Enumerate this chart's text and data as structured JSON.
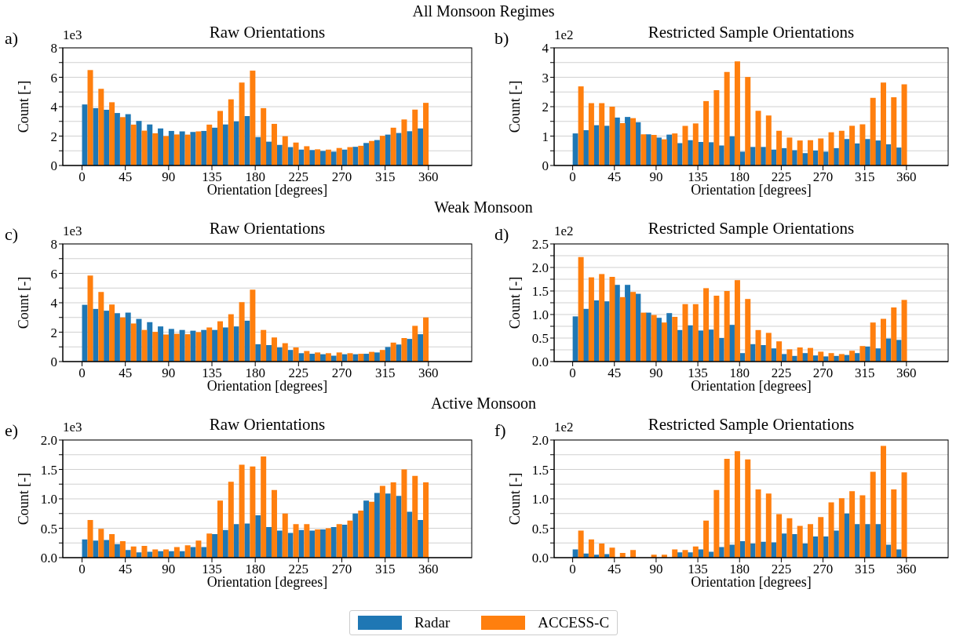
{
  "chart_data": [
    {
      "type": "bar",
      "title": "Raw Orientations",
      "xlabel": "Orientation [degrees]",
      "ylabel": "Count [-]",
      "annotations": [
        "a)",
        "1e3",
        "All Monsoon Regimes"
      ],
      "x": [
        5.625,
        16.875,
        28.125,
        39.375,
        50.625,
        61.875,
        73.125,
        84.375,
        95.625,
        106.875,
        118.125,
        129.375,
        140.625,
        151.875,
        163.125,
        174.375,
        185.625,
        196.875,
        208.125,
        219.375,
        230.625,
        241.875,
        253.125,
        264.375,
        275.625,
        286.875,
        298.125,
        309.375,
        320.625,
        331.875,
        343.125,
        354.375
      ],
      "series": [
        {
          "color": "#1f77b4",
          "values": [
            4.15,
            3.9,
            3.79,
            3.57,
            3.49,
            3.03,
            2.79,
            2.52,
            2.35,
            2.32,
            2.28,
            2.35,
            2.57,
            2.79,
            3.0,
            3.36,
            1.93,
            1.62,
            1.4,
            1.25,
            1.08,
            1.05,
            0.99,
            0.94,
            1.08,
            1.27,
            1.53,
            1.73,
            2.1,
            2.21,
            2.33,
            2.52
          ]
        },
        {
          "color": "#ff7f0e",
          "values": [
            6.49,
            5.22,
            4.3,
            3.29,
            2.78,
            2.37,
            2.19,
            2.0,
            2.11,
            2.1,
            2.32,
            2.78,
            3.71,
            4.5,
            5.64,
            6.45,
            3.9,
            2.83,
            1.99,
            1.56,
            1.31,
            1.1,
            1.08,
            1.19,
            1.25,
            1.34,
            1.67,
            2.02,
            2.57,
            3.13,
            3.8,
            4.26
          ]
        }
      ],
      "xlim": [
        -20,
        405
      ],
      "xticks": [
        0,
        45,
        90,
        135,
        180,
        225,
        270,
        315,
        360
      ],
      "ylim": [
        0,
        8
      ],
      "yticks": [
        0,
        {
          "value": 1,
          "label": null
        },
        2,
        {
          "value": 3,
          "label": null
        },
        4,
        {
          "value": 5,
          "label": null
        },
        6,
        {
          "value": 7,
          "label": null
        },
        8
      ],
      "grid": "y"
    },
    {
      "type": "bar",
      "title": "Restricted Sample Orientations",
      "xlabel": "Orientation [degrees]",
      "ylabel": "Count [-]",
      "annotations": [
        "b)",
        "1e2"
      ],
      "x": [
        5.625,
        16.875,
        28.125,
        39.375,
        50.625,
        61.875,
        73.125,
        84.375,
        95.625,
        106.875,
        118.125,
        129.375,
        140.625,
        151.875,
        163.125,
        174.375,
        185.625,
        196.875,
        208.125,
        219.375,
        230.625,
        241.875,
        253.125,
        264.375,
        275.625,
        286.875,
        298.125,
        309.375,
        320.625,
        331.875,
        343.125,
        354.375
      ],
      "series": [
        {
          "color": "#1f77b4",
          "values": [
            1.09,
            1.2,
            1.37,
            1.35,
            1.63,
            1.65,
            1.47,
            1.06,
            0.95,
            1.05,
            0.76,
            0.86,
            0.8,
            0.79,
            0.68,
            0.99,
            0.47,
            0.63,
            0.63,
            0.54,
            0.59,
            0.52,
            0.42,
            0.51,
            0.47,
            0.59,
            0.9,
            0.75,
            0.9,
            0.85,
            0.72,
            0.61
          ]
        },
        {
          "color": "#ff7f0e",
          "values": [
            2.69,
            2.12,
            2.12,
            2.0,
            1.44,
            1.61,
            1.06,
            1.04,
            0.89,
            1.09,
            1.35,
            1.43,
            2.19,
            2.56,
            3.18,
            3.54,
            3.01,
            1.86,
            1.7,
            1.18,
            0.95,
            0.85,
            0.86,
            0.92,
            1.13,
            1.18,
            1.35,
            1.4,
            2.3,
            2.82,
            2.32,
            2.76
          ]
        }
      ],
      "xlim": [
        -20,
        405
      ],
      "xticks": [
        0,
        45,
        90,
        135,
        180,
        225,
        270,
        315,
        360
      ],
      "ylim": [
        0,
        4
      ],
      "yticks": [
        0,
        {
          "value": 0.5,
          "label": null
        },
        1,
        {
          "value": 1.5,
          "label": null
        },
        2,
        {
          "value": 2.5,
          "label": null
        },
        3,
        {
          "value": 3.5,
          "label": null
        },
        4
      ],
      "grid": "y"
    },
    {
      "type": "bar",
      "title": "Raw Orientations",
      "xlabel": "Orientation [degrees]",
      "ylabel": "Count [-]",
      "annotations": [
        "c)",
        "1e3",
        "Weak Monsoon"
      ],
      "x": [
        5.625,
        16.875,
        28.125,
        39.375,
        50.625,
        61.875,
        73.125,
        84.375,
        95.625,
        106.875,
        118.125,
        129.375,
        140.625,
        151.875,
        163.125,
        174.375,
        185.625,
        196.875,
        208.125,
        219.375,
        230.625,
        241.875,
        253.125,
        264.375,
        275.625,
        286.875,
        298.125,
        309.375,
        320.625,
        331.875,
        343.125,
        354.375
      ],
      "series": [
        {
          "color": "#1f77b4",
          "values": [
            3.86,
            3.58,
            3.46,
            3.29,
            3.33,
            2.9,
            2.68,
            2.39,
            2.22,
            2.15,
            2.1,
            2.15,
            2.15,
            2.32,
            2.39,
            2.78,
            1.18,
            1.12,
            0.96,
            0.79,
            0.57,
            0.53,
            0.5,
            0.4,
            0.5,
            0.5,
            0.53,
            0.62,
            0.99,
            1.16,
            1.54,
            1.86
          ]
        },
        {
          "color": "#ff7f0e",
          "values": [
            5.85,
            4.74,
            3.88,
            3.0,
            2.59,
            2.15,
            2.02,
            1.84,
            1.89,
            1.86,
            2.0,
            2.32,
            2.74,
            3.22,
            4.04,
            4.89,
            2.15,
            1.64,
            1.25,
            0.96,
            0.72,
            0.62,
            0.57,
            0.62,
            0.57,
            0.53,
            0.66,
            0.79,
            1.29,
            1.6,
            2.43,
            3.0
          ]
        }
      ],
      "xlim": [
        -20,
        405
      ],
      "xticks": [
        0,
        45,
        90,
        135,
        180,
        225,
        270,
        315,
        360
      ],
      "ylim": [
        0,
        8
      ],
      "yticks": [
        0,
        {
          "value": 1,
          "label": null
        },
        2,
        {
          "value": 3,
          "label": null
        },
        4,
        {
          "value": 5,
          "label": null
        },
        6,
        {
          "value": 7,
          "label": null
        },
        8
      ],
      "grid": "y"
    },
    {
      "type": "bar",
      "title": "Restricted Sample Orientations",
      "xlabel": "Orientation [degrees]",
      "ylabel": "Count [-]",
      "annotations": [
        "d)",
        "1e2"
      ],
      "x": [
        5.625,
        16.875,
        28.125,
        39.375,
        50.625,
        61.875,
        73.125,
        84.375,
        95.625,
        106.875,
        118.125,
        129.375,
        140.625,
        151.875,
        163.125,
        174.375,
        185.625,
        196.875,
        208.125,
        219.375,
        230.625,
        241.875,
        253.125,
        264.375,
        275.625,
        286.875,
        298.125,
        309.375,
        320.625,
        331.875,
        343.125,
        354.375
      ],
      "series": [
        {
          "color": "#1f77b4",
          "values": [
            0.96,
            1.12,
            1.3,
            1.28,
            1.63,
            1.63,
            1.44,
            1.04,
            0.93,
            1.03,
            0.67,
            0.77,
            0.66,
            0.68,
            0.5,
            0.78,
            0.18,
            0.37,
            0.35,
            0.28,
            0.16,
            0.12,
            0.18,
            0.13,
            0.11,
            0.12,
            0.14,
            0.18,
            0.32,
            0.28,
            0.49,
            0.46
          ]
        },
        {
          "color": "#ff7f0e",
          "values": [
            2.22,
            1.79,
            1.86,
            1.8,
            1.37,
            1.48,
            1.04,
            0.99,
            0.83,
            0.95,
            1.22,
            1.22,
            1.56,
            1.4,
            1.5,
            1.73,
            1.33,
            0.67,
            0.61,
            0.43,
            0.26,
            0.3,
            0.29,
            0.21,
            0.18,
            0.16,
            0.23,
            0.33,
            0.83,
            0.91,
            1.15,
            1.31
          ]
        }
      ],
      "xlim": [
        -20,
        405
      ],
      "xticks": [
        0,
        45,
        90,
        135,
        180,
        225,
        270,
        315,
        360
      ],
      "ylim": [
        0,
        2.5
      ],
      "yticks": [
        {
          "value": 0,
          "label": "0.0"
        },
        {
          "value": 0.25,
          "label": null
        },
        {
          "value": 0.5,
          "label": "0.5"
        },
        {
          "value": 0.75,
          "label": null
        },
        {
          "value": 1,
          "label": "1.0"
        },
        {
          "value": 1.25,
          "label": null
        },
        {
          "value": 1.5,
          "label": "1.5"
        },
        {
          "value": 1.75,
          "label": null
        },
        {
          "value": 2,
          "label": "2.0"
        },
        {
          "value": 2.25,
          "label": null
        },
        {
          "value": 2.5,
          "label": "2.5"
        }
      ],
      "grid": "y"
    },
    {
      "type": "bar",
      "title": "Raw Orientations",
      "xlabel": "Orientation [degrees]",
      "ylabel": "Count [-]",
      "annotations": [
        "e)",
        "1e3",
        "Active Monsoon"
      ],
      "x": [
        5.625,
        16.875,
        28.125,
        39.375,
        50.625,
        61.875,
        73.125,
        84.375,
        95.625,
        106.875,
        118.125,
        129.375,
        140.625,
        151.875,
        163.125,
        174.375,
        185.625,
        196.875,
        208.125,
        219.375,
        230.625,
        241.875,
        253.125,
        264.375,
        275.625,
        286.875,
        298.125,
        309.375,
        320.625,
        331.875,
        343.125,
        354.375
      ],
      "series": [
        {
          "color": "#1f77b4",
          "values": [
            0.31,
            0.29,
            0.3,
            0.23,
            0.13,
            0.09,
            0.1,
            0.11,
            0.11,
            0.11,
            0.18,
            0.18,
            0.4,
            0.47,
            0.57,
            0.58,
            0.72,
            0.52,
            0.46,
            0.42,
            0.47,
            0.46,
            0.48,
            0.52,
            0.56,
            0.75,
            0.97,
            1.1,
            1.09,
            1.05,
            0.78,
            0.64
          ]
        },
        {
          "color": "#ff7f0e",
          "values": [
            0.64,
            0.49,
            0.4,
            0.28,
            0.19,
            0.2,
            0.14,
            0.14,
            0.18,
            0.21,
            0.29,
            0.41,
            0.97,
            1.29,
            1.58,
            1.55,
            1.72,
            1.15,
            0.75,
            0.57,
            0.57,
            0.48,
            0.5,
            0.57,
            0.63,
            0.8,
            0.95,
            1.22,
            1.28,
            1.5,
            1.39,
            1.28
          ]
        }
      ],
      "xlim": [
        -20,
        405
      ],
      "xticks": [
        0,
        45,
        90,
        135,
        180,
        225,
        270,
        315,
        360
      ],
      "ylim": [
        0,
        2
      ],
      "yticks": [
        {
          "value": 0,
          "label": "0.0"
        },
        {
          "value": 0.25,
          "label": null
        },
        {
          "value": 0.5,
          "label": "0.5"
        },
        {
          "value": 0.75,
          "label": null
        },
        {
          "value": 1,
          "label": "1.0"
        },
        {
          "value": 1.25,
          "label": null
        },
        {
          "value": 1.5,
          "label": "1.5"
        },
        {
          "value": 1.75,
          "label": null
        },
        {
          "value": 2,
          "label": "2.0"
        }
      ],
      "grid": "y"
    },
    {
      "type": "bar",
      "title": "Restricted Sample Orientations",
      "xlabel": "Orientation [degrees]",
      "ylabel": "Count [-]",
      "annotations": [
        "f)",
        "1e2"
      ],
      "x": [
        5.625,
        16.875,
        28.125,
        39.375,
        50.625,
        61.875,
        73.125,
        84.375,
        95.625,
        106.875,
        118.125,
        129.375,
        140.625,
        151.875,
        163.125,
        174.375,
        185.625,
        196.875,
        208.125,
        219.375,
        230.625,
        241.875,
        253.125,
        264.375,
        275.625,
        286.875,
        298.125,
        309.375,
        320.625,
        331.875,
        343.125,
        354.375
      ],
      "series": [
        {
          "name": "Radar",
          "color": "#1f77b4",
          "values": [
            0.14,
            0.07,
            0.05,
            0.06,
            0,
            0,
            null,
            0,
            0,
            0,
            0.09,
            0.09,
            0.14,
            0.1,
            0.18,
            0.22,
            0.28,
            0.24,
            0.27,
            0.26,
            0.41,
            0.4,
            0.24,
            0.36,
            0.36,
            0.46,
            0.75,
            0.57,
            0.57,
            0.57,
            0.22,
            0.14
          ]
        },
        {
          "name": "ACCESS-C",
          "color": "#ff7f0e",
          "values": [
            0.46,
            0.31,
            0.24,
            0.17,
            0.08,
            0.13,
            null,
            0.05,
            0.05,
            0.14,
            0.13,
            0.19,
            0.63,
            1.15,
            1.68,
            1.81,
            1.67,
            1.16,
            1.09,
            0.74,
            0.67,
            0.54,
            0.57,
            0.69,
            0.94,
            1.01,
            1.13,
            1.06,
            1.46,
            1.9,
            1.16,
            1.45
          ]
        }
      ],
      "xlim": [
        -20,
        405
      ],
      "xticks": [
        0,
        45,
        90,
        135,
        180,
        225,
        270,
        315,
        360
      ],
      "ylim": [
        0,
        2
      ],
      "yticks": [
        {
          "value": 0,
          "label": "0.0"
        },
        {
          "value": 0.25,
          "label": null
        },
        {
          "value": 0.5,
          "label": "0.5"
        },
        {
          "value": 0.75,
          "label": null
        },
        {
          "value": 1,
          "label": "1.0"
        },
        {
          "value": 1.25,
          "label": null
        },
        {
          "value": 1.5,
          "label": "1.5"
        },
        {
          "value": 1.75,
          "label": null
        },
        {
          "value": 2,
          "label": "2.0"
        }
      ],
      "grid": "y",
      "legend": "bottom"
    }
  ]
}
